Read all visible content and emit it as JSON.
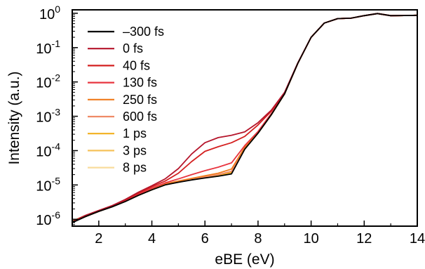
{
  "chart_data": {
    "type": "line",
    "xlabel": "eBE (eV)",
    "ylabel": "Intensity (a.u.)",
    "xlim": [
      1,
      14
    ],
    "ylim_log10": [
      -6.2,
      0.1
    ],
    "yscale": "log",
    "xticks": [
      "2",
      "4",
      "6",
      "8",
      "10",
      "12",
      "14"
    ],
    "yticks": [
      {
        "base": "10",
        "exp": "0"
      },
      {
        "base": "10",
        "exp": "-1"
      },
      {
        "base": "10",
        "exp": "-2"
      },
      {
        "base": "10",
        "exp": "-3"
      },
      {
        "base": "10",
        "exp": "-4"
      },
      {
        "base": "10",
        "exp": "-5"
      },
      {
        "base": "10",
        "exp": "-6"
      }
    ],
    "legend_position": "top-left",
    "grid": false,
    "x": [
      1.0,
      1.5,
      2.0,
      2.5,
      3.0,
      3.5,
      4.0,
      4.5,
      5.0,
      5.5,
      6.0,
      6.5,
      7.0,
      7.5,
      8.0,
      8.5,
      9.0,
      9.5,
      10.0,
      10.5,
      11.0,
      11.5,
      12.0,
      12.5,
      13.0,
      13.5,
      14.0
    ],
    "series": [
      {
        "name": "–300 fs",
        "color": "#000000",
        "values": [
          8e-07,
          1.2e-06,
          1.7e-06,
          2.3e-06,
          3.3e-06,
          5e-06,
          7.2e-06,
          1e-05,
          1.2e-05,
          1.4e-05,
          1.6e-05,
          1.8e-05,
          2.1e-05,
          0.00011,
          0.00032,
          0.0011,
          0.0045,
          0.035,
          0.2,
          0.52,
          0.7,
          0.72,
          0.85,
          0.98,
          0.85,
          0.86,
          0.87
        ]
      },
      {
        "name": "0 fs",
        "color": "#b5152b",
        "values": [
          8.5e-07,
          1.3e-06,
          1.8e-06,
          2.5e-06,
          3.8e-06,
          6.2e-06,
          9.5e-06,
          1.5e-05,
          3e-05,
          8e-05,
          0.00017,
          0.00024,
          0.00028,
          0.00035,
          0.00065,
          0.0015,
          0.005,
          0.036,
          0.2,
          0.52,
          0.7,
          0.72,
          0.85,
          0.98,
          0.85,
          0.86,
          0.87
        ]
      },
      {
        "name": "40 fs",
        "color": "#d42020",
        "values": [
          8.5e-07,
          1.3e-06,
          1.8e-06,
          2.5e-06,
          3.6e-06,
          5.8e-06,
          8.8e-06,
          1.3e-05,
          2.2e-05,
          4.8e-05,
          9.5e-05,
          0.00013,
          0.00017,
          0.00026,
          0.00056,
          0.0014,
          0.0048,
          0.036,
          0.2,
          0.52,
          0.7,
          0.72,
          0.85,
          0.98,
          0.85,
          0.86,
          0.87
        ]
      },
      {
        "name": "130 fs",
        "color": "#e8353f",
        "values": [
          8.2e-07,
          1.25e-06,
          1.75e-06,
          2.4e-06,
          3.5e-06,
          5.4e-06,
          8e-06,
          1.15e-05,
          1.5e-05,
          2e-05,
          2.6e-05,
          3.3e-05,
          4.4e-05,
          0.00014,
          0.00036,
          0.0012,
          0.0046,
          0.035,
          0.2,
          0.52,
          0.7,
          0.72,
          0.85,
          0.98,
          0.85,
          0.86,
          0.87
        ]
      },
      {
        "name": "250 fs",
        "color": "#f07a1c",
        "values": [
          8.2e-07,
          1.2e-06,
          1.7e-06,
          2.35e-06,
          3.4e-06,
          5.2e-06,
          7.6e-06,
          1.08e-05,
          1.3e-05,
          1.55e-05,
          1.85e-05,
          2.2e-05,
          2.9e-05,
          0.000125,
          0.00034,
          0.00115,
          0.0045,
          0.035,
          0.2,
          0.52,
          0.7,
          0.72,
          0.85,
          0.98,
          0.85,
          0.86,
          0.87
        ]
      },
      {
        "name": "600 fs",
        "color": "#ef8a66",
        "values": [
          8.2e-07,
          1.2e-06,
          1.7e-06,
          2.3e-06,
          3.35e-06,
          5.1e-06,
          7.4e-06,
          1.05e-05,
          1.25e-05,
          1.48e-05,
          1.72e-05,
          2e-05,
          2.5e-05,
          0.000118,
          0.00033,
          0.00112,
          0.0045,
          0.035,
          0.2,
          0.52,
          0.7,
          0.72,
          0.85,
          0.98,
          0.85,
          0.86,
          0.87
        ]
      },
      {
        "name": "1 ps",
        "color": "#f2b01e",
        "values": [
          8.5e-07,
          1.25e-06,
          1.72e-06,
          2.32e-06,
          3.35e-06,
          5.05e-06,
          7.3e-06,
          1.03e-05,
          1.22e-05,
          1.44e-05,
          1.66e-05,
          1.9e-05,
          2.3e-05,
          0.000114,
          0.000325,
          0.0011,
          0.0045,
          0.035,
          0.2,
          0.52,
          0.7,
          0.72,
          0.85,
          0.98,
          0.85,
          0.86,
          0.87
        ]
      },
      {
        "name": "3 ps",
        "color": "#f5c25a",
        "values": [
          8.8e-07,
          1.28e-06,
          1.75e-06,
          2.33e-06,
          3.33e-06,
          5e-06,
          7.25e-06,
          1.02e-05,
          1.21e-05,
          1.42e-05,
          1.62e-05,
          1.84e-05,
          2.2e-05,
          0.000112,
          0.000322,
          0.0011,
          0.0045,
          0.035,
          0.2,
          0.52,
          0.7,
          0.72,
          0.85,
          0.98,
          0.85,
          0.86,
          0.87
        ]
      },
      {
        "name": "8 ps",
        "color": "#f8dc9c",
        "values": [
          9e-07,
          1.3e-06,
          1.77e-06,
          2.34e-06,
          3.32e-06,
          5e-06,
          7.2e-06,
          1.01e-05,
          1.2e-05,
          1.41e-05,
          1.6e-05,
          1.82e-05,
          2.15e-05,
          0.00011,
          0.00032,
          0.0011,
          0.0045,
          0.035,
          0.2,
          0.52,
          0.7,
          0.72,
          0.85,
          0.98,
          0.85,
          0.86,
          0.87
        ]
      }
    ]
  }
}
